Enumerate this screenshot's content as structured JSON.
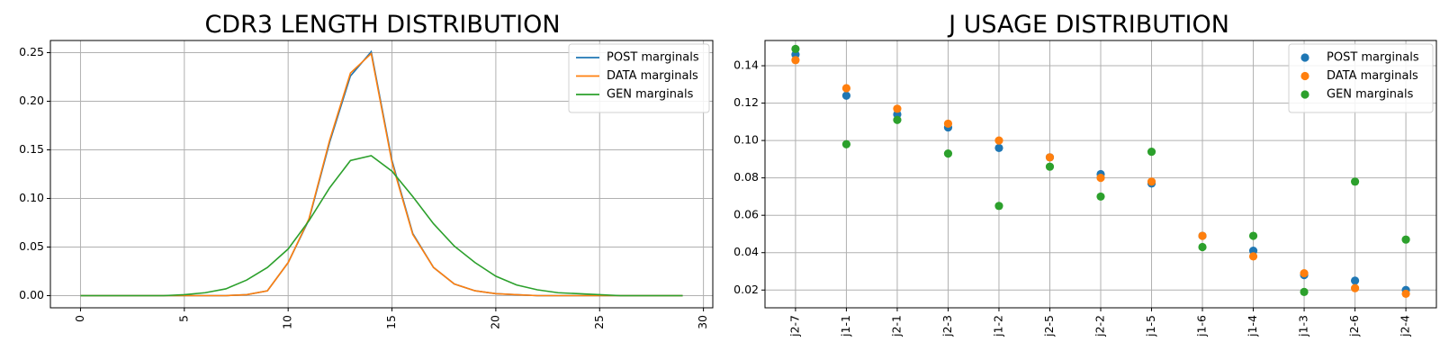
{
  "colors": {
    "post": "#1f77b4",
    "data": "#ff7f0e",
    "gen": "#2ca02c"
  },
  "chart_data": [
    {
      "type": "line",
      "title": "CDR3 LENGTH DISTRIBUTION",
      "xlabel": "",
      "ylabel": "",
      "xlim": [
        -1.45,
        30.45
      ],
      "ylim": [
        -0.0125,
        0.2625
      ],
      "xticks": [
        0,
        5,
        10,
        15,
        20,
        25,
        30
      ],
      "yticks": [
        0.0,
        0.05,
        0.1,
        0.15,
        0.2,
        0.25
      ],
      "ytick_labels": [
        "0.00",
        "0.05",
        "0.10",
        "0.15",
        "0.20",
        "0.25"
      ],
      "grid": true,
      "legend_position": "top-right",
      "x": [
        0,
        1,
        2,
        3,
        4,
        5,
        6,
        7,
        8,
        9,
        10,
        11,
        12,
        13,
        14,
        15,
        16,
        17,
        18,
        19,
        20,
        21,
        22,
        23,
        24,
        25,
        26,
        27,
        28,
        29
      ],
      "series": [
        {
          "name": "POST marginals",
          "color_key": "post",
          "values": [
            0,
            0,
            0,
            0,
            0,
            0,
            0,
            0,
            0.001,
            0.005,
            0.034,
            0.078,
            0.158,
            0.226,
            0.251,
            0.139,
            0.064,
            0.029,
            0.012,
            0.005,
            0.002,
            0.001,
            0,
            0,
            0,
            0,
            0,
            0,
            0,
            0
          ]
        },
        {
          "name": "DATA marginals",
          "color_key": "data",
          "values": [
            0,
            0,
            0,
            0,
            0,
            0,
            0,
            0,
            0.001,
            0.005,
            0.034,
            0.079,
            0.16,
            0.229,
            0.249,
            0.137,
            0.063,
            0.029,
            0.012,
            0.005,
            0.002,
            0.001,
            0,
            0,
            0,
            0,
            0,
            0,
            0,
            0
          ]
        },
        {
          "name": "GEN marginals",
          "color_key": "gen",
          "values": [
            0,
            0,
            0,
            0,
            0,
            0.001,
            0.003,
            0.007,
            0.016,
            0.029,
            0.048,
            0.077,
            0.111,
            0.139,
            0.144,
            0.128,
            0.102,
            0.074,
            0.051,
            0.034,
            0.02,
            0.011,
            0.006,
            0.003,
            0.002,
            0.001,
            0,
            0,
            0,
            0
          ]
        }
      ]
    },
    {
      "type": "scatter",
      "title": "J USAGE DISTRIBUTION",
      "xlabel": "",
      "ylabel": "",
      "ylim": [
        0.0105,
        0.1535
      ],
      "yticks": [
        0.02,
        0.04,
        0.06,
        0.08,
        0.1,
        0.12,
        0.14
      ],
      "ytick_labels": [
        "0.02",
        "0.04",
        "0.06",
        "0.08",
        "0.10",
        "0.12",
        "0.14"
      ],
      "grid": true,
      "legend_position": "top-right",
      "categories": [
        "j2-7",
        "j1-1",
        "j2-1",
        "j2-3",
        "j1-2",
        "j2-5",
        "j2-2",
        "j1-5",
        "j1-6",
        "j1-4",
        "j1-3",
        "j2-6",
        "j2-4"
      ],
      "series": [
        {
          "name": "POST marginals",
          "color_key": "post",
          "values": [
            0.146,
            0.124,
            0.114,
            0.107,
            0.096,
            0.091,
            0.082,
            0.077,
            0.049,
            0.041,
            0.028,
            0.025,
            0.02
          ]
        },
        {
          "name": "DATA marginals",
          "color_key": "data",
          "values": [
            0.143,
            0.128,
            0.117,
            0.109,
            0.1,
            0.091,
            0.08,
            0.078,
            0.049,
            0.038,
            0.029,
            0.021,
            0.018
          ]
        },
        {
          "name": "GEN marginals",
          "color_key": "gen",
          "values": [
            0.149,
            0.098,
            0.111,
            0.093,
            0.065,
            0.086,
            0.07,
            0.094,
            0.043,
            0.049,
            0.019,
            0.078,
            0.047
          ]
        }
      ]
    }
  ]
}
